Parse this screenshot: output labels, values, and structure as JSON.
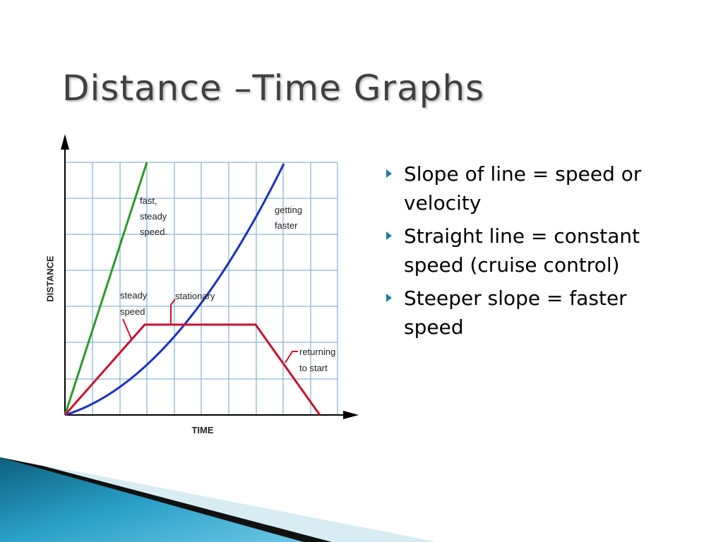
{
  "title": "Distance –Time Graphs",
  "figure": {
    "y_axis_label": "DISTANCE",
    "x_axis_label": "TIME",
    "annotations": {
      "fast_steady": [
        "fast,",
        "steady",
        "speed."
      ],
      "getting_faster": [
        "getting",
        "faster"
      ],
      "steady_speed": [
        "steady",
        "speed"
      ],
      "stationary": [
        "stationary"
      ],
      "returning": [
        "returning",
        "to start"
      ]
    }
  },
  "bullets": [
    "Slope of line = speed or velocity",
    "Straight line = constant speed (cruise control)",
    "Steeper slope = faster speed"
  ]
}
